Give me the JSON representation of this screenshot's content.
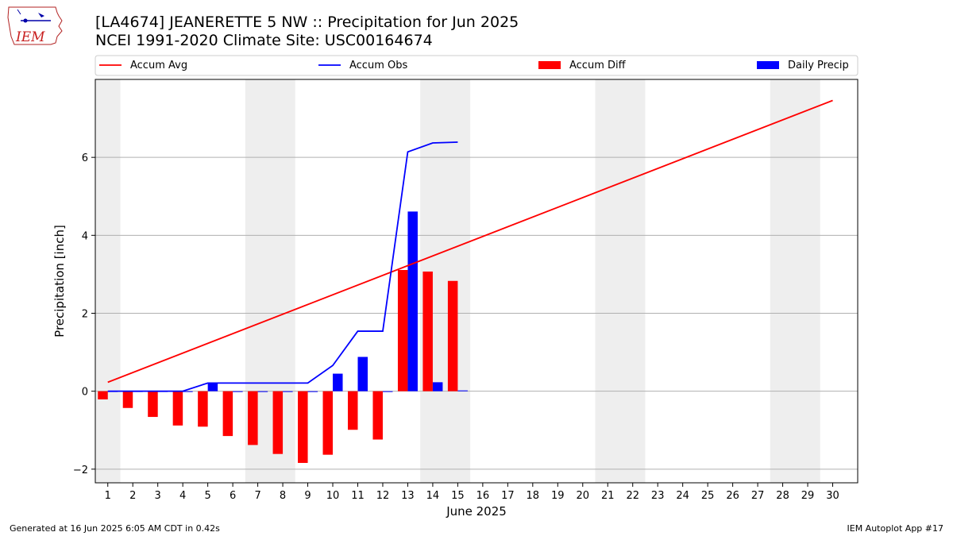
{
  "header": {
    "title_line1": "[LA4674] JEANERETTE 5 NW :: Precipitation for Jun 2025",
    "title_line2": "NCEI 1991-2020 Climate Site: USC00164674",
    "logo_text": "IEM"
  },
  "footer": {
    "generated": "Generated at 16 Jun 2025 6:05 AM CDT in 0.42s",
    "app": "IEM Autoplot App #17"
  },
  "colors": {
    "accum_avg": "#ff0000",
    "accum_obs": "#0000ff",
    "accum_diff": "#ff0000",
    "daily_precip": "#0000ff",
    "weekend_shade": "#eeeeee",
    "grid": "#b0b0b0"
  },
  "chart_data": {
    "type": "bar",
    "xlabel": "June 2025",
    "ylabel": "Precipitation [inch]",
    "xlim": [
      0.5,
      31.0
    ],
    "ylim": [
      -2.35,
      8.0
    ],
    "x_ticks": [
      1,
      2,
      3,
      4,
      5,
      6,
      7,
      8,
      9,
      10,
      11,
      12,
      13,
      14,
      15,
      16,
      17,
      18,
      19,
      20,
      21,
      22,
      23,
      24,
      25,
      26,
      27,
      28,
      29,
      30
    ],
    "y_ticks": [
      -2,
      0,
      2,
      4,
      6
    ],
    "grid": "y",
    "legend_position": "top",
    "weekend_shading": [
      [
        0.5,
        1.5
      ],
      [
        6.5,
        8.5
      ],
      [
        13.5,
        15.5
      ],
      [
        20.5,
        22.5
      ],
      [
        27.5,
        29.5
      ]
    ],
    "series": [
      {
        "name": "Accum Avg",
        "kind": "line",
        "x": [
          1,
          30
        ],
        "values": [
          0.23,
          7.46
        ]
      },
      {
        "name": "Accum Obs",
        "kind": "line",
        "x": [
          1,
          2,
          3,
          4,
          5,
          6,
          7,
          8,
          9,
          10,
          11,
          12,
          13,
          14,
          15
        ],
        "values": [
          0.0,
          0.0,
          0.0,
          0.0,
          0.21,
          0.21,
          0.21,
          0.21,
          0.21,
          0.66,
          1.54,
          1.54,
          6.14,
          6.37,
          6.39
        ]
      },
      {
        "name": "Accum Diff",
        "kind": "bar",
        "x": [
          1,
          2,
          3,
          4,
          5,
          6,
          7,
          8,
          9,
          10,
          11,
          12,
          13,
          14,
          15
        ],
        "values": [
          -0.21,
          -0.43,
          -0.66,
          -0.88,
          -0.91,
          -1.15,
          -1.38,
          -1.61,
          -1.84,
          -1.63,
          -0.99,
          -1.24,
          3.11,
          3.07,
          2.83
        ]
      },
      {
        "name": "Daily Precip",
        "kind": "bar",
        "x": [
          1,
          2,
          3,
          4,
          5,
          6,
          7,
          8,
          9,
          10,
          11,
          12,
          13,
          14,
          15
        ],
        "values": [
          0,
          0,
          0,
          0,
          0.21,
          0,
          0,
          0,
          0,
          0.45,
          0.88,
          0,
          4.61,
          0.23,
          0.02
        ]
      }
    ]
  }
}
